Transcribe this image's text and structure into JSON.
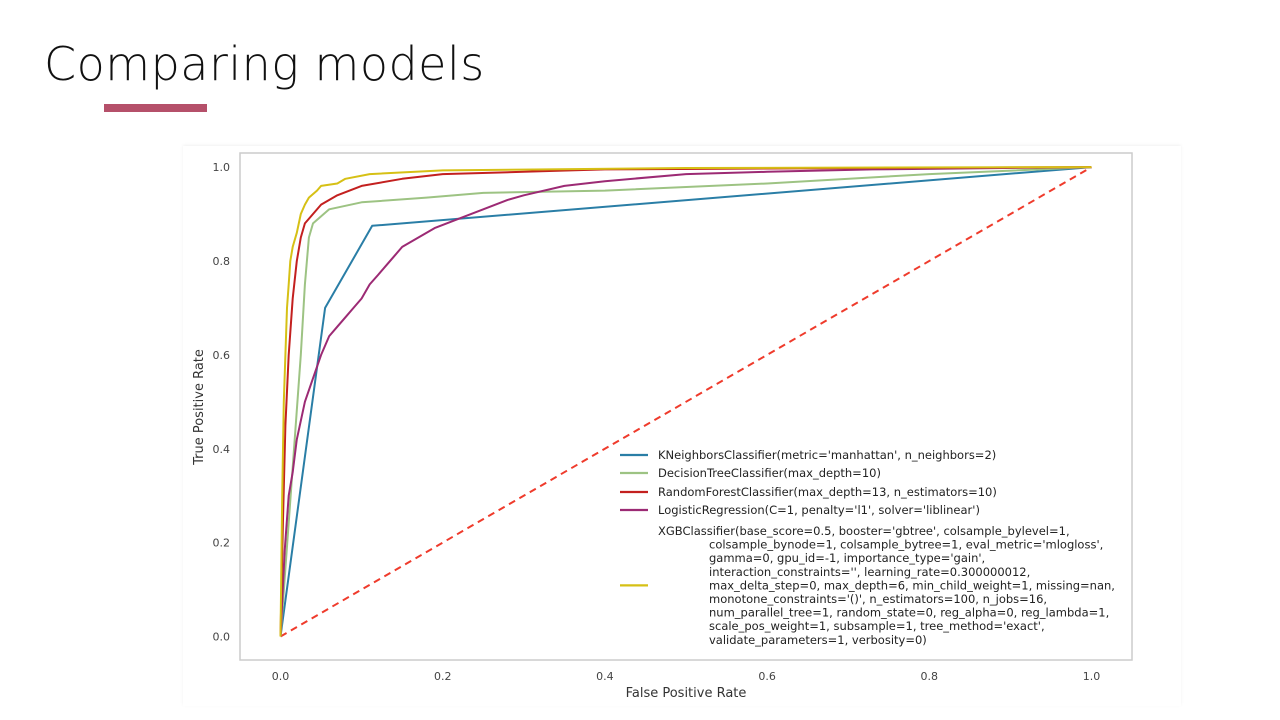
{
  "slide": {
    "title": "Comparing models",
    "accent_color": "#b5506a"
  },
  "chart_data": {
    "type": "line",
    "xlabel": "False Positive Rate",
    "ylabel": "True Positive Rate",
    "xlim": [
      -0.05,
      1.05
    ],
    "ylim": [
      -0.05,
      1.03
    ],
    "xticks": [
      0.0,
      0.2,
      0.4,
      0.6,
      0.8,
      1.0
    ],
    "yticks": [
      0.0,
      0.2,
      0.4,
      0.6,
      0.8,
      1.0
    ],
    "tick_labels_x": [
      "0.0",
      "0.2",
      "0.4",
      "0.6",
      "0.8",
      "1.0"
    ],
    "tick_labels_y": [
      "0.0",
      "0.2",
      "0.4",
      "0.6",
      "0.8",
      "1.0"
    ],
    "grid": false,
    "legend_position": "lower-right",
    "series": [
      {
        "name": "KNeighborsClassifier(metric='manhattan', n_neighbors=2)",
        "color": "#2a7ea6",
        "dash": false,
        "points": [
          [
            0.0,
            0.0
          ],
          [
            0.055,
            0.7
          ],
          [
            0.113,
            0.875
          ],
          [
            1.0,
            1.0
          ]
        ]
      },
      {
        "name": "DecisionTreeClassifier(max_depth=10)",
        "color": "#9dc383",
        "dash": false,
        "points": [
          [
            0.0,
            0.0
          ],
          [
            0.025,
            0.6
          ],
          [
            0.03,
            0.75
          ],
          [
            0.035,
            0.85
          ],
          [
            0.04,
            0.88
          ],
          [
            0.06,
            0.91
          ],
          [
            0.1,
            0.925
          ],
          [
            0.18,
            0.935
          ],
          [
            0.25,
            0.945
          ],
          [
            0.4,
            0.95
          ],
          [
            0.6,
            0.965
          ],
          [
            0.8,
            0.985
          ],
          [
            1.0,
            1.0
          ]
        ]
      },
      {
        "name": "RandomForestClassifier(max_depth=13, n_estimators=10)",
        "color": "#c3201f",
        "dash": false,
        "points": [
          [
            0.0,
            0.0
          ],
          [
            0.003,
            0.25
          ],
          [
            0.006,
            0.45
          ],
          [
            0.01,
            0.6
          ],
          [
            0.015,
            0.72
          ],
          [
            0.02,
            0.8
          ],
          [
            0.025,
            0.85
          ],
          [
            0.03,
            0.88
          ],
          [
            0.04,
            0.9
          ],
          [
            0.05,
            0.92
          ],
          [
            0.07,
            0.94
          ],
          [
            0.1,
            0.96
          ],
          [
            0.15,
            0.975
          ],
          [
            0.2,
            0.985
          ],
          [
            0.3,
            0.99
          ],
          [
            0.4,
            0.995
          ],
          [
            0.6,
            0.997
          ],
          [
            1.0,
            1.0
          ]
        ]
      },
      {
        "name": "LogisticRegression(C=1, penalty='l1', solver='liblinear')",
        "color": "#9c2a74",
        "dash": false,
        "points": [
          [
            0.0,
            0.0
          ],
          [
            0.005,
            0.18
          ],
          [
            0.01,
            0.3
          ],
          [
            0.015,
            0.35
          ],
          [
            0.02,
            0.42
          ],
          [
            0.03,
            0.5
          ],
          [
            0.04,
            0.55
          ],
          [
            0.05,
            0.6
          ],
          [
            0.06,
            0.64
          ],
          [
            0.07,
            0.66
          ],
          [
            0.08,
            0.68
          ],
          [
            0.09,
            0.7
          ],
          [
            0.1,
            0.72
          ],
          [
            0.11,
            0.75
          ],
          [
            0.12,
            0.77
          ],
          [
            0.13,
            0.79
          ],
          [
            0.14,
            0.81
          ],
          [
            0.15,
            0.83
          ],
          [
            0.17,
            0.85
          ],
          [
            0.19,
            0.87
          ],
          [
            0.22,
            0.89
          ],
          [
            0.25,
            0.91
          ],
          [
            0.28,
            0.93
          ],
          [
            0.3,
            0.94
          ],
          [
            0.35,
            0.96
          ],
          [
            0.4,
            0.97
          ],
          [
            0.5,
            0.985
          ],
          [
            0.6,
            0.99
          ],
          [
            0.73,
            0.995
          ],
          [
            1.0,
            1.0
          ]
        ]
      },
      {
        "name": "XGBClassifier(base_score=0.5, booster='gbtree', colsample_bylevel=1,",
        "name_continuation": [
          "colsample_bynode=1, colsample_bytree=1, eval_metric='mlogloss',",
          "gamma=0, gpu_id=-1, importance_type='gain',",
          "interaction_constraints='', learning_rate=0.300000012,",
          "max_delta_step=0, max_depth=6, min_child_weight=1, missing=nan,",
          "monotone_constraints='()', n_estimators=100, n_jobs=16,",
          "num_parallel_tree=1, random_state=0, reg_alpha=0, reg_lambda=1,",
          "scale_pos_weight=1, subsample=1, tree_method='exact',",
          "validate_parameters=1, verbosity=0)"
        ],
        "color": "#d6c015",
        "dash": false,
        "points": [
          [
            0.0,
            0.0
          ],
          [
            0.002,
            0.3
          ],
          [
            0.004,
            0.5
          ],
          [
            0.006,
            0.6
          ],
          [
            0.008,
            0.7
          ],
          [
            0.01,
            0.75
          ],
          [
            0.012,
            0.8
          ],
          [
            0.015,
            0.83
          ],
          [
            0.02,
            0.86
          ],
          [
            0.025,
            0.9
          ],
          [
            0.03,
            0.92
          ],
          [
            0.035,
            0.935
          ],
          [
            0.045,
            0.95
          ],
          [
            0.05,
            0.96
          ],
          [
            0.07,
            0.965
          ],
          [
            0.08,
            0.975
          ],
          [
            0.11,
            0.985
          ],
          [
            0.2,
            0.993
          ],
          [
            0.5,
            0.998
          ],
          [
            1.0,
            1.0
          ]
        ]
      },
      {
        "name": "",
        "color": "#ef3b2c",
        "dash": true,
        "points": [
          [
            0.0,
            0.0
          ],
          [
            1.0,
            1.0
          ]
        ]
      }
    ]
  }
}
